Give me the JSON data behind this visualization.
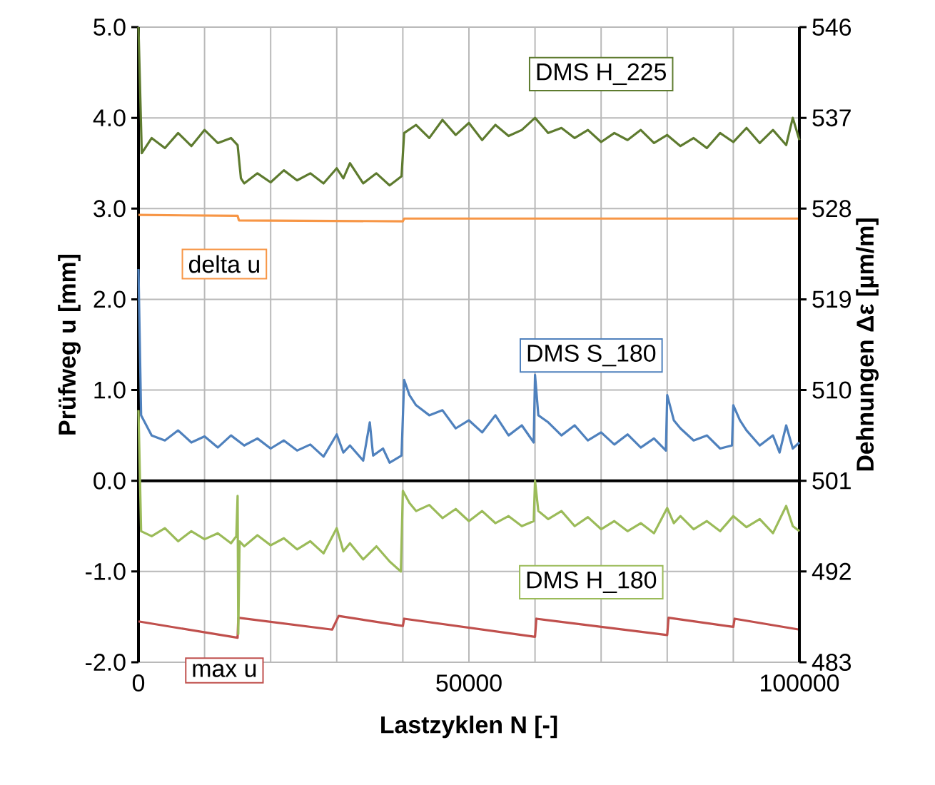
{
  "chart_data": {
    "type": "line",
    "xlabel": "Lastzyklen N [-]",
    "ylabel": "Prüfweg u [mm]",
    "y2label": "Dehnungen Δε [µm/m]",
    "xlim": [
      0,
      100000
    ],
    "xticks": [
      0,
      {
        "value": 10000,
        "label": null
      },
      {
        "value": 20000,
        "label": null
      },
      {
        "value": 30000,
        "label": null
      },
      {
        "value": 40000,
        "label": null
      },
      50000,
      {
        "value": 60000,
        "label": null
      },
      {
        "value": 70000,
        "label": null
      },
      {
        "value": 80000,
        "label": null
      },
      {
        "value": 90000,
        "label": null
      },
      100000
    ],
    "ylim": [
      -2,
      5
    ],
    "yticks": [
      {
        "value": -2,
        "label": "-2.0"
      },
      {
        "value": -1,
        "label": "-1.0"
      },
      {
        "value": 0,
        "label": "0.0"
      },
      {
        "value": 1,
        "label": "1.0"
      },
      {
        "value": 2,
        "label": "2.0"
      },
      {
        "value": 3,
        "label": "3.0"
      },
      {
        "value": 4,
        "label": "4.0"
      },
      {
        "value": 5,
        "label": "5.0"
      }
    ],
    "y2lim": [
      483,
      546
    ],
    "y2ticks": [
      483,
      492,
      501,
      510,
      519,
      528,
      537,
      546
    ],
    "grid": true,
    "ref_lines": [
      {
        "axis": "y",
        "value": 0,
        "color": "#000000"
      }
    ],
    "series": [
      {
        "name": "DMS H_225",
        "color": "#5e7b2f",
        "axis": "y2",
        "x": [
          0,
          500,
          2000,
          4000,
          6000,
          8000,
          10000,
          12000,
          14000,
          15000,
          15500,
          16000,
          18000,
          20000,
          22000,
          24000,
          26000,
          28000,
          30000,
          31000,
          32000,
          34000,
          36000,
          38000,
          39800,
          40200,
          42000,
          44000,
          46000,
          48000,
          50000,
          52000,
          54000,
          56000,
          58000,
          60000,
          62000,
          64000,
          66000,
          68000,
          70000,
          72000,
          74000,
          76000,
          78000,
          80000,
          82000,
          84000,
          86000,
          88000,
          90000,
          92000,
          94000,
          96000,
          98000,
          99000,
          100000
        ],
        "values": [
          546,
          533.5,
          535,
          534,
          535.5,
          534.2,
          535.8,
          534.5,
          535,
          534.3,
          531,
          530.5,
          531.5,
          530.6,
          531.8,
          530.8,
          531.5,
          530.5,
          532,
          531,
          532.5,
          530.5,
          531.5,
          530.3,
          531.2,
          535.5,
          536.3,
          535,
          536.8,
          535.3,
          536.5,
          534.8,
          536.3,
          535.2,
          535.8,
          537,
          535.5,
          536,
          535,
          535.8,
          534.6,
          535.5,
          534.8,
          535.8,
          534.5,
          535.3,
          534.2,
          535,
          534,
          535.5,
          534.6,
          536,
          534.5,
          535.8,
          534.3,
          537,
          534.8
        ]
      },
      {
        "name": "delta u",
        "color": "#f79646",
        "x": [
          0,
          15000,
          15200,
          40000,
          40200,
          100000
        ],
        "values": [
          2.93,
          2.92,
          2.87,
          2.86,
          2.89,
          2.89
        ]
      },
      {
        "name": "DMS S_180",
        "color": "#4f81bd",
        "axis": "y2",
        "x": [
          0,
          400,
          2000,
          4000,
          6000,
          8000,
          10000,
          12000,
          14000,
          16000,
          18000,
          20000,
          22000,
          24000,
          26000,
          28000,
          30000,
          31000,
          32000,
          34000,
          35000,
          35500,
          37000,
          38000,
          39800,
          40200,
          41000,
          42000,
          44000,
          46000,
          48000,
          50000,
          52000,
          54000,
          56000,
          58000,
          59800,
          60000,
          60500,
          62000,
          64000,
          66000,
          68000,
          70000,
          72000,
          74000,
          76000,
          78000,
          79800,
          80000,
          81000,
          82000,
          84000,
          86000,
          88000,
          89800,
          90000,
          91000,
          92000,
          94000,
          96000,
          97000,
          98000,
          99000,
          100000
        ],
        "values": [
          522,
          507.5,
          505.5,
          505,
          506,
          504.8,
          505.4,
          504.3,
          505.5,
          504.5,
          505.2,
          504.2,
          505,
          504,
          504.6,
          503.4,
          505.6,
          503.8,
          504.5,
          503,
          506.8,
          503.5,
          504.2,
          502.8,
          503.5,
          511,
          509.5,
          508.5,
          507.5,
          508,
          506.2,
          507,
          505.8,
          507.5,
          505.5,
          506.5,
          504.8,
          511.5,
          507.5,
          506.8,
          505.5,
          506.5,
          505,
          505.8,
          504.6,
          505.6,
          504.3,
          505.2,
          504,
          509.5,
          507,
          506.2,
          505,
          505.5,
          504.2,
          504.5,
          508.5,
          507,
          506,
          504.5,
          505.5,
          503.8,
          506.5,
          504.2,
          504.8
        ]
      },
      {
        "name": "DMS H_180",
        "color": "#9bbb59",
        "axis": "y2",
        "x": [
          0,
          400,
          2000,
          4000,
          6000,
          8000,
          10000,
          12000,
          14000,
          14800,
          15000,
          15100,
          15300,
          16000,
          18000,
          20000,
          22000,
          24000,
          26000,
          28000,
          30000,
          31000,
          32000,
          34000,
          36000,
          38000,
          39700,
          40000,
          41000,
          42000,
          44000,
          46000,
          48000,
          50000,
          52000,
          54000,
          56000,
          58000,
          59800,
          60000,
          60500,
          62000,
          64000,
          66000,
          68000,
          70000,
          72000,
          74000,
          76000,
          78000,
          80000,
          81000,
          82000,
          84000,
          86000,
          88000,
          90000,
          92000,
          94000,
          96000,
          98000,
          99000,
          100000
        ],
        "values": [
          508,
          496,
          495.5,
          496.3,
          495,
          496,
          495.2,
          495.8,
          494.8,
          495.5,
          499.5,
          485.8,
          495,
          494.5,
          495.6,
          494.6,
          495.3,
          494.2,
          495,
          493.8,
          496.3,
          494,
          494.8,
          493.2,
          494.5,
          493,
          492,
          500,
          498.8,
          498,
          498.6,
          497.3,
          498.2,
          497,
          498,
          496.8,
          497.5,
          496.5,
          497,
          501,
          498,
          497.2,
          498,
          496.5,
          497.4,
          496.2,
          497,
          496,
          496.8,
          495.8,
          498.3,
          496.8,
          497.5,
          496.2,
          497,
          496,
          497.5,
          496.4,
          497.2,
          495.8,
          498.5,
          496.5,
          496
        ]
      },
      {
        "name": "max u",
        "color": "#c0504d",
        "x": [
          0,
          15000,
          15100,
          29300,
          30300,
          40000,
          40200,
          60000,
          60200,
          80000,
          80200,
          90000,
          90200,
          100000
        ],
        "values": [
          -1.55,
          -1.73,
          -1.51,
          -1.64,
          -1.49,
          -1.6,
          -1.52,
          -1.72,
          -1.52,
          -1.7,
          -1.51,
          -1.61,
          -1.52,
          -1.64
        ]
      }
    ]
  }
}
